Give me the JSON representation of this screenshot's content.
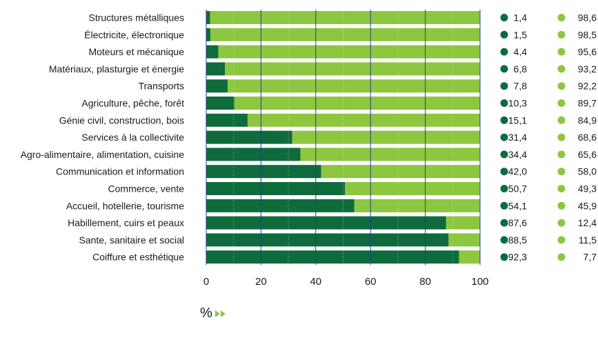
{
  "chart_data": {
    "type": "bar",
    "stacked": true,
    "orientation": "horizontal",
    "categories": [
      "Structures métalliques",
      "Électricite, électronique",
      "Moteurs et mécanique",
      "Matériaux, plasturgie et énergie",
      "Transports",
      "Agriculture, pêche, forêt",
      "Génie civil, construction, bois",
      "Services à la collectivite",
      "Agro-alimentaire, alimentation, cuisine",
      "Communication et information",
      "Commerce, vente",
      "Accueil, hotellerie, tourisme",
      "Habillement, cuirs et peaux",
      "Sante, sanitaire et social",
      "Coiffure et esthétique"
    ],
    "series": [
      {
        "color": "#0e6b3c",
        "values": [
          1.4,
          1.5,
          4.4,
          6.8,
          7.8,
          10.3,
          15.1,
          31.4,
          34.4,
          42.0,
          50.7,
          54.1,
          87.6,
          88.5,
          92.3
        ],
        "labels": [
          "1,4",
          "1,5",
          "4,4",
          "6,8",
          "7,8",
          "10,3",
          "15,1",
          "31,4",
          "34,4",
          "42,0",
          "50,7",
          "54,1",
          "87,6",
          "88,5",
          "92,3"
        ]
      },
      {
        "color": "#8dc63f",
        "values": [
          98.6,
          98.5,
          95.6,
          93.2,
          92.2,
          89.7,
          84.9,
          68.6,
          65.6,
          58.0,
          49.3,
          45.9,
          12.4,
          11.5,
          7.7
        ],
        "labels": [
          "98,6",
          "98,5",
          "95,6",
          "93,2",
          "92,2",
          "89,7",
          "84,9",
          "68,6",
          "65,6",
          "58,0",
          "49,3",
          "45,9",
          "12,4",
          "11,5",
          "7,7"
        ]
      }
    ],
    "xlim": [
      0,
      100
    ],
    "xticks": [
      "0",
      "20",
      "40",
      "60",
      "80",
      "100"
    ],
    "gridline_color": "#2b3a8f",
    "unit_label": "%"
  }
}
